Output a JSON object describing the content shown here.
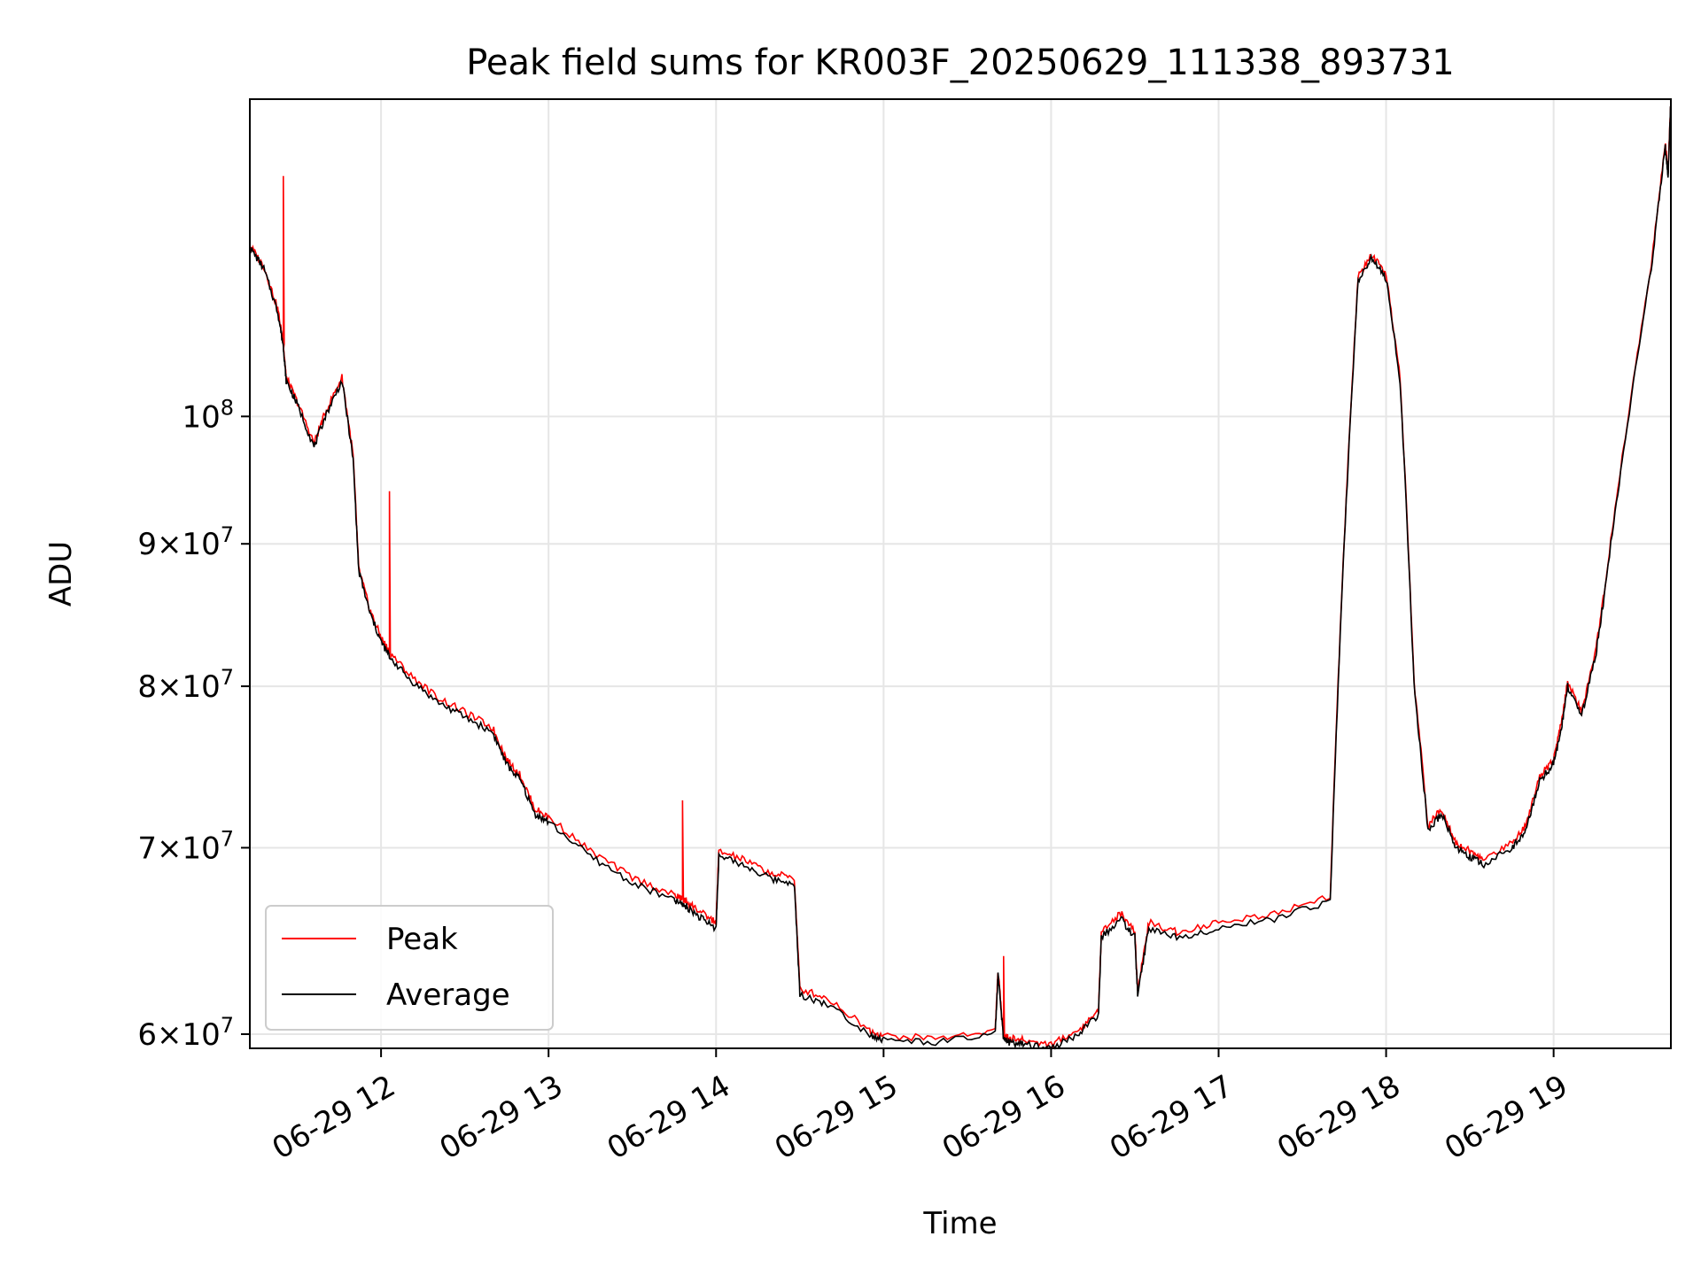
{
  "chart_data": {
    "type": "line",
    "title": "Peak field sums for KR003F_20250629_111338_893731",
    "xlabel": "Time",
    "ylabel": "ADU",
    "x_range": [
      "2025-06-29 11:13",
      "2025-06-29 19:42"
    ],
    "y_range": [
      59300000,
      130000000
    ],
    "y_scale": "log",
    "grid": true,
    "legend_position": "lower left",
    "x_ticks": [
      "06-29 12",
      "06-29 13",
      "06-29 14",
      "06-29 15",
      "06-29 16",
      "06-29 17",
      "06-29 18",
      "06-29 19"
    ],
    "x_tick_times": [
      "2025-06-29 12:00",
      "2025-06-29 13:00",
      "2025-06-29 14:00",
      "2025-06-29 15:00",
      "2025-06-29 16:00",
      "2025-06-29 17:00",
      "2025-06-29 18:00",
      "2025-06-29 19:00"
    ],
    "y_ticks": [
      {
        "value": 60000000,
        "mant": "6",
        "exp": "7"
      },
      {
        "value": 70000000,
        "mant": "7",
        "exp": "7"
      },
      {
        "value": 80000000,
        "mant": "8",
        "exp": "7"
      },
      {
        "value": 90000000,
        "mant": "9",
        "exp": "7"
      },
      {
        "value": 100000000,
        "mant": "",
        "exp": "8"
      }
    ],
    "series": [
      {
        "name": "Peak",
        "color": "#ff0000"
      },
      {
        "name": "Average",
        "color": "#000000"
      }
    ],
    "x": [
      "11:13",
      "11:18",
      "11:23",
      "11:25",
      "11:26",
      "11:30",
      "11:36",
      "11:40",
      "11:46",
      "11:50",
      "11:52",
      "11:56",
      "12:00",
      "12:03",
      "12:10",
      "12:20",
      "12:30",
      "12:40",
      "12:45",
      "12:50",
      "12:55",
      "13:00",
      "13:15",
      "13:30",
      "13:45",
      "13:48",
      "13:50",
      "13:55",
      "14:00",
      "14:01",
      "14:10",
      "14:20",
      "14:28",
      "14:30",
      "14:40",
      "14:55",
      "15:00",
      "15:20",
      "15:40",
      "15:41",
      "15:43",
      "15:45",
      "15:50",
      "16:00",
      "16:10",
      "16:17",
      "16:18",
      "16:25",
      "16:30",
      "16:31",
      "16:35",
      "16:45",
      "17:00",
      "17:20",
      "17:40",
      "17:45",
      "17:50",
      "17:55",
      "18:00",
      "18:05",
      "18:10",
      "18:15",
      "18:20",
      "18:25",
      "18:30",
      "18:35",
      "18:45",
      "18:50",
      "18:55",
      "19:00",
      "19:03",
      "19:05",
      "19:10",
      "19:15",
      "19:18",
      "19:25",
      "19:35",
      "19:40",
      "19:41",
      "19:42"
    ],
    "average": [
      115000000,
      113000000,
      109000000,
      106000000,
      103000000,
      101000000,
      97500000,
      100000000,
      103000000,
      96500000,
      88000000,
      85000000,
      83000000,
      82000000,
      80500000,
      79000000,
      78000000,
      77000000,
      75000000,
      74000000,
      72000000,
      71500000,
      69500000,
      68000000,
      67000000,
      66800000,
      66600000,
      66000000,
      65500000,
      69500000,
      69000000,
      68200000,
      68000000,
      62000000,
      61500000,
      60000000,
      59700000,
      59600000,
      60000000,
      63000000,
      59700000,
      59600000,
      59500000,
      59300000,
      60000000,
      61000000,
      65000000,
      66000000,
      65000000,
      62000000,
      65500000,
      65000000,
      65500000,
      66000000,
      67000000,
      90000000,
      112000000,
      114000000,
      112000000,
      103000000,
      80000000,
      71000000,
      72000000,
      70000000,
      69500000,
      69000000,
      70000000,
      71000000,
      74000000,
      75000000,
      77500000,
      80000000,
      78000000,
      82000000,
      86000000,
      97000000,
      113000000,
      125000000,
      122000000,
      130000000
    ],
    "peak": [
      115200000,
      113200000,
      109300000,
      106200000,
      103300000,
      101200000,
      97800000,
      100300000,
      103300000,
      96800000,
      88200000,
      85200000,
      83300000,
      82300000,
      80800000,
      79300000,
      78300000,
      77300000,
      75300000,
      74300000,
      72300000,
      71800000,
      69800000,
      68300000,
      67300000,
      67100000,
      66900000,
      66300000,
      65800000,
      69800000,
      69300000,
      68500000,
      68300000,
      62300000,
      61800000,
      60200000,
      59900000,
      59800000,
      60200000,
      63200000,
      59900000,
      59800000,
      59700000,
      59500000,
      60200000,
      61200000,
      65300000,
      66300000,
      65300000,
      62200000,
      65800000,
      65300000,
      65800000,
      66300000,
      67300000,
      90300000,
      112300000,
      114300000,
      112300000,
      103300000,
      80300000,
      71300000,
      72300000,
      70300000,
      69800000,
      69300000,
      70300000,
      71300000,
      74300000,
      75300000,
      77800000,
      80300000,
      78300000,
      82300000,
      86300000,
      97300000,
      113300000,
      125300000,
      122300000,
      130000000
    ],
    "peak_spikes": [
      {
        "time": "11:25",
        "value": 122000000
      },
      {
        "time": "12:03",
        "value": 94000000
      },
      {
        "time": "13:48",
        "value": 72800000
      },
      {
        "time": "15:43",
        "value": 64000000
      }
    ]
  }
}
